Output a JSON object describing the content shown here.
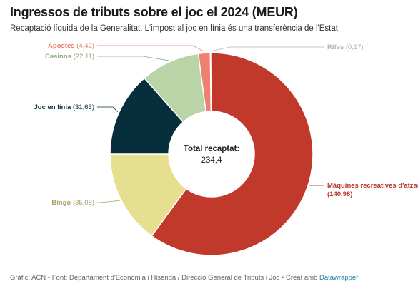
{
  "header": {
    "title": "Ingressos de tributs sobre el joc el 2024 (MEUR)",
    "subtitle": "Recaptació líquida de la Generalitat. L'impost al joc en línia és una transferència de l'Estat"
  },
  "chart_data": {
    "type": "pie",
    "variant": "donut",
    "slices": [
      {
        "name": "Rifes",
        "value": 0.17,
        "value_label": "0,17",
        "color": "#c8c8c8",
        "label_color": "#b4b4b4"
      },
      {
        "name": "Màquines recreatives d'atzar",
        "value": 140.98,
        "value_label": "140,98",
        "color": "#c0392b",
        "label_color": "#b5372e"
      },
      {
        "name": "Bingo",
        "value": 35.08,
        "value_label": "35,08",
        "color": "#e6df8f",
        "label_color": "#a8a064"
      },
      {
        "name": "Joc en línia",
        "value": 31.63,
        "value_label": "31,63",
        "color": "#062f3b",
        "label_color": "#062f3b"
      },
      {
        "name": "Casinos",
        "value": 22.11,
        "value_label": "22,11",
        "color": "#b9d4a7",
        "label_color": "#8fa886"
      },
      {
        "name": "Apostes",
        "value": 4.42,
        "value_label": "4,42",
        "color": "#ec8172",
        "label_color": "#e77d6f"
      }
    ],
    "center": {
      "title": "Total recaptat:",
      "value": "234,4"
    }
  },
  "footer": {
    "text": "Gràfic: ACN • Font: Departament d'Economia i Hisenda / Direcció General de Tributs i Joc • Creat amb ",
    "link": "Datawrapper"
  }
}
